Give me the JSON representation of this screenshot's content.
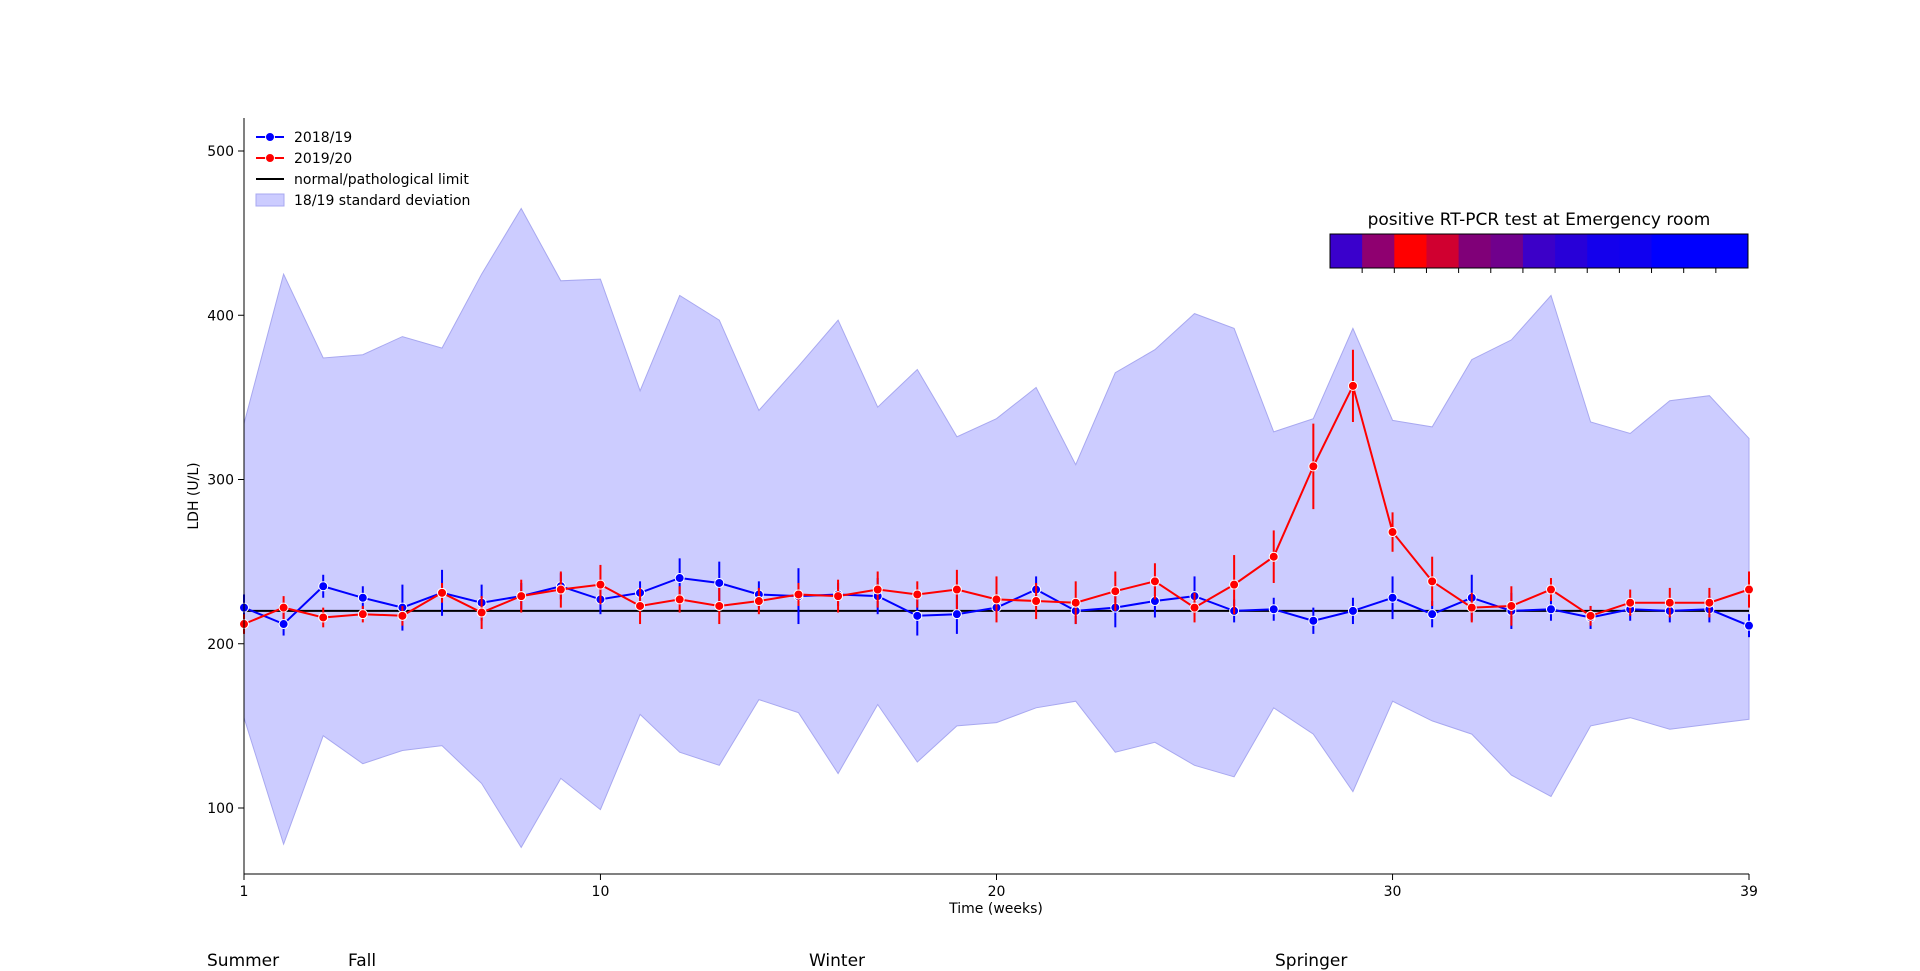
{
  "chart_data": {
    "type": "line",
    "xlabel": "Time (weeks)",
    "ylabel": "LDH (U/L)",
    "xlim": [
      1,
      39
    ],
    "ylim": [
      60,
      520
    ],
    "xticks": [
      1,
      10,
      20,
      30,
      39
    ],
    "yticks": [
      100,
      200,
      300,
      400,
      500
    ],
    "grid": false,
    "legend_position": "top-left",
    "x": [
      1,
      2,
      3,
      4,
      5,
      6,
      7,
      8,
      9,
      10,
      11,
      12,
      13,
      14,
      15,
      16,
      17,
      18,
      19,
      20,
      21,
      22,
      23,
      24,
      25,
      26,
      27,
      28,
      29,
      30,
      31,
      32,
      33,
      34,
      35,
      36,
      37,
      38,
      39
    ],
    "series": [
      {
        "name": "2018/19",
        "color": "#0000ff",
        "values": [
          222,
          212,
          235,
          228,
          222,
          231,
          225,
          229,
          235,
          227,
          231,
          240,
          237,
          230,
          229,
          230,
          229,
          217,
          218,
          222,
          233,
          220,
          222,
          226,
          229,
          220,
          221,
          214,
          220,
          228,
          218,
          228,
          220,
          221,
          216,
          221,
          220,
          221,
          211
        ],
        "error": [
          8,
          7,
          7,
          7,
          14,
          14,
          11,
          8,
          8,
          9,
          7,
          12,
          13,
          8,
          17,
          7,
          11,
          12,
          12,
          8,
          8,
          8,
          12,
          10,
          12,
          7,
          7,
          8,
          8,
          13,
          8,
          14,
          11,
          7,
          7,
          7,
          7,
          8,
          7
        ]
      },
      {
        "name": "2019/20",
        "color": "#ff0000",
        "values": [
          212,
          222,
          216,
          218,
          217,
          231,
          219,
          229,
          233,
          236,
          223,
          227,
          223,
          226,
          230,
          229,
          233,
          230,
          233,
          227,
          226,
          225,
          232,
          238,
          222,
          236,
          253,
          308,
          357,
          268,
          238,
          222,
          223,
          233,
          217,
          225,
          225,
          225,
          233
        ],
        "error": [
          6,
          7,
          6,
          5,
          6,
          6,
          10,
          10,
          11,
          12,
          11,
          8,
          11,
          8,
          7,
          10,
          11,
          8,
          12,
          14,
          11,
          13,
          12,
          11,
          9,
          18,
          16,
          26,
          22,
          12,
          15,
          9,
          12,
          7,
          6,
          8,
          9,
          9,
          11
        ]
      }
    ],
    "band": {
      "name": "18/19 standard deviation",
      "color": "#ccccff",
      "upper": [
        334,
        425,
        374,
        376,
        387,
        380,
        425,
        465,
        421,
        422,
        354,
        412,
        397,
        342,
        369,
        397,
        344,
        367,
        326,
        337,
        356,
        309,
        365,
        379,
        401,
        392,
        329,
        337,
        392,
        336,
        332,
        373,
        385,
        412,
        335,
        328,
        348,
        351,
        325
      ],
      "lower": [
        155,
        78,
        144,
        127,
        135,
        138,
        115,
        76,
        118,
        99,
        157,
        134,
        126,
        166,
        158,
        121,
        163,
        128,
        150,
        152,
        161,
        165,
        134,
        140,
        126,
        119,
        161,
        145,
        110,
        165,
        153,
        145,
        120,
        107,
        150,
        155,
        148,
        151,
        154
      ]
    },
    "reference_line": {
      "name": "normal/pathological limit",
      "value": 220,
      "color": "#000000"
    },
    "legend": [
      "2018/19",
      "2019/20",
      "normal/pathological limit",
      "18/19 standard deviation"
    ],
    "colorbar": {
      "title": "positive RT-PCR test at Emergency room",
      "colors": [
        "#3a00cc",
        "#8f0070",
        "#ff0000",
        "#d00030",
        "#800078",
        "#70008c",
        "#3c00c8",
        "#2800d8",
        "#1400ec",
        "#1000f0",
        "#0000ff",
        "#0000ff",
        "#0000ff"
      ]
    }
  },
  "seasons": [
    "Summer",
    "Fall",
    "Winter",
    "Springer"
  ]
}
